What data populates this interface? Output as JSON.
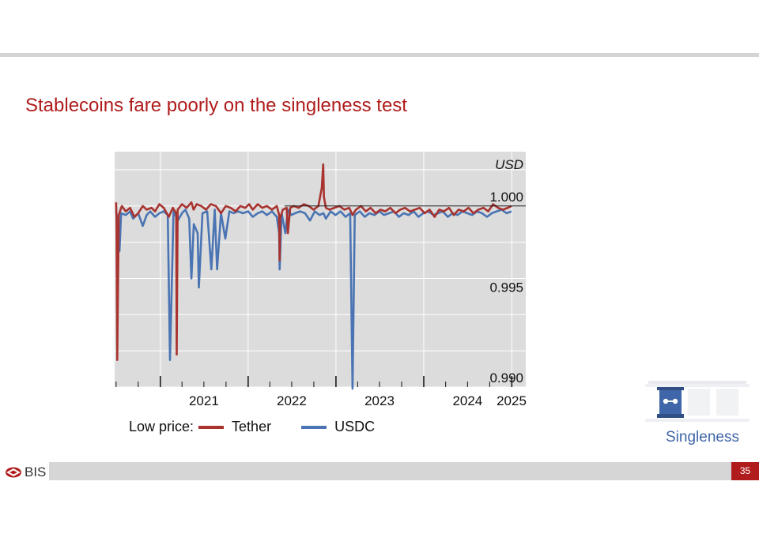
{
  "slide": {
    "title": "Stablecoins fare poorly on the singleness test",
    "page_number": "35",
    "logo_text": "BIS",
    "section_label": "Singleness"
  },
  "colors": {
    "title": "#b01c1c",
    "tether": "#a8332f",
    "usdc": "#4a74b3",
    "plot_background": "#dcdcdc",
    "section_label": "#3f66a8"
  },
  "icons": [
    "bis-logo-icon",
    "singleness-pillars-icon"
  ],
  "legend": {
    "prefix": "Low price:",
    "items": [
      "Tether",
      "USDC"
    ]
  },
  "chart_data": {
    "type": "line",
    "title": "",
    "xlabel": "",
    "ylabel": "",
    "unit_label": "USD",
    "y_axis_side": "right",
    "ylim": [
      0.99,
      1.003
    ],
    "y_ticks": [
      0.99,
      0.995,
      1.0
    ],
    "y_tick_labels": [
      "0.990",
      "0.995",
      "1.000"
    ],
    "reference_line": 1.0,
    "x_tick_labels": [
      "2021",
      "2022",
      "2023",
      "2024",
      "2025"
    ],
    "grid": true,
    "legend_placement": "bottom",
    "series": [
      {
        "name": "Tether",
        "x": [
          "2020-07-01",
          "2020-07-03",
          "2020-07-06",
          "2020-07-12",
          "2020-07-25",
          "2020-08-10",
          "2020-08-28",
          "2020-09-15",
          "2020-10-01",
          "2020-10-20",
          "2020-11-05",
          "2020-11-25",
          "2020-12-10",
          "2020-12-28",
          "2021-01-15",
          "2021-02-05",
          "2021-02-22",
          "2021-03-08",
          "2021-03-10",
          "2021-03-14",
          "2021-04-01",
          "2021-04-20",
          "2021-05-10",
          "2021-05-19",
          "2021-06-01",
          "2021-06-20",
          "2021-07-10",
          "2021-07-30",
          "2021-08-20",
          "2021-09-10",
          "2021-09-30",
          "2021-10-20",
          "2021-11-10",
          "2021-11-30",
          "2021-12-20",
          "2022-01-05",
          "2022-01-20",
          "2022-02-10",
          "2022-03-01",
          "2022-03-20",
          "2022-04-10",
          "2022-04-30",
          "2022-05-10",
          "2022-05-12",
          "2022-05-14",
          "2022-05-25",
          "2022-06-10",
          "2022-06-15",
          "2022-06-25",
          "2022-07-10",
          "2022-07-30",
          "2022-08-20",
          "2022-09-10",
          "2022-09-30",
          "2022-10-20",
          "2022-11-03",
          "2022-11-09",
          "2022-11-12",
          "2022-11-20",
          "2022-12-05",
          "2022-12-25",
          "2023-01-15",
          "2023-02-05",
          "2023-02-25",
          "2023-03-11",
          "2023-03-25",
          "2023-04-15",
          "2023-05-05",
          "2023-05-25",
          "2023-06-15",
          "2023-07-05",
          "2023-07-25",
          "2023-08-15",
          "2023-09-05",
          "2023-09-25",
          "2023-10-15",
          "2023-11-05",
          "2023-11-25",
          "2023-12-15",
          "2024-01-05",
          "2024-01-25",
          "2024-02-15",
          "2024-03-05",
          "2024-03-25",
          "2024-04-15",
          "2024-05-05",
          "2024-05-25",
          "2024-06-15",
          "2024-07-05",
          "2024-07-25",
          "2024-08-15",
          "2024-09-05",
          "2024-09-25",
          "2024-10-15",
          "2024-11-05",
          "2024-11-25",
          "2024-12-15",
          "2024-12-31"
        ],
        "values": [
          1.0002,
          0.9992,
          0.9915,
          0.9995,
          1.0,
          0.9997,
          0.9999,
          0.9994,
          0.9996,
          1.0,
          0.9998,
          0.9999,
          0.9997,
          1.0001,
          0.9999,
          0.9994,
          0.9999,
          0.9996,
          0.9918,
          0.9998,
          1.0001,
          0.9999,
          1.0002,
          0.9998,
          1.0001,
          1.0,
          0.9998,
          1.0001,
          1.0,
          0.9996,
          1.0,
          0.9999,
          0.9997,
          1.0,
          0.9999,
          1.0001,
          0.9998,
          1.0001,
          0.9999,
          1.0,
          0.9998,
          1.0,
          0.9995,
          0.997,
          0.9993,
          0.9998,
          0.9999,
          0.9985,
          0.9999,
          1.0,
          0.9999,
          1.0001,
          1.0,
          0.9998,
          1.0,
          1.001,
          1.0023,
          1.0005,
          0.9999,
          0.9998,
          0.9999,
          1.0,
          0.9998,
          0.9999,
          0.9995,
          0.9998,
          1.0,
          0.9997,
          0.9999,
          0.9996,
          0.9998,
          0.9997,
          0.9999,
          0.9996,
          0.9998,
          0.9999,
          0.9997,
          0.9998,
          0.9999,
          0.9996,
          0.9998,
          0.9994,
          0.9998,
          0.9997,
          0.9999,
          0.9995,
          0.9998,
          0.9997,
          0.9999,
          0.9996,
          0.9998,
          0.9999,
          0.9997,
          1.0001,
          0.9999,
          0.9998,
          0.9999,
          1.0
        ]
      },
      {
        "name": "USDC",
        "x": [
          "2020-07-01",
          "2020-07-10",
          "2020-07-15",
          "2020-07-22",
          "2020-08-10",
          "2020-08-28",
          "2020-09-10",
          "2020-10-01",
          "2020-10-20",
          "2020-11-05",
          "2020-11-20",
          "2020-12-10",
          "2020-12-28",
          "2021-01-15",
          "2021-02-01",
          "2021-02-10",
          "2021-02-25",
          "2021-03-15",
          "2021-04-01",
          "2021-04-15",
          "2021-05-01",
          "2021-05-10",
          "2021-05-20",
          "2021-06-05",
          "2021-06-10",
          "2021-06-25",
          "2021-07-15",
          "2021-08-01",
          "2021-08-15",
          "2021-08-25",
          "2021-09-10",
          "2021-09-28",
          "2021-10-15",
          "2021-11-01",
          "2021-11-20",
          "2021-12-10",
          "2022-01-01",
          "2022-01-20",
          "2022-02-10",
          "2022-03-01",
          "2022-03-20",
          "2022-04-10",
          "2022-04-30",
          "2022-05-10",
          "2022-05-12",
          "2022-05-20",
          "2022-06-05",
          "2022-06-15",
          "2022-06-30",
          "2022-07-15",
          "2022-08-05",
          "2022-08-25",
          "2022-09-15",
          "2022-10-05",
          "2022-10-25",
          "2022-11-10",
          "2022-11-20",
          "2022-12-10",
          "2022-12-30",
          "2023-01-20",
          "2023-02-10",
          "2023-03-01",
          "2023-03-11",
          "2023-03-20",
          "2023-04-10",
          "2023-05-01",
          "2023-05-20",
          "2023-06-10",
          "2023-07-01",
          "2023-07-20",
          "2023-08-10",
          "2023-08-30",
          "2023-09-20",
          "2023-10-10",
          "2023-10-30",
          "2023-11-20",
          "2023-12-10",
          "2023-12-30",
          "2024-01-20",
          "2024-02-10",
          "2024-03-01",
          "2024-03-20",
          "2024-04-10",
          "2024-04-30",
          "2024-05-20",
          "2024-06-10",
          "2024-06-30",
          "2024-07-20",
          "2024-08-10",
          "2024-08-30",
          "2024-09-20",
          "2024-10-10",
          "2024-10-30",
          "2024-11-20",
          "2024-12-10",
          "2024-12-31"
        ],
        "values": [
          0.9997,
          0.999,
          0.9975,
          0.9996,
          0.9995,
          0.9997,
          0.9993,
          0.9996,
          0.9989,
          0.9995,
          0.9997,
          0.9994,
          0.9996,
          0.9997,
          0.9995,
          0.9915,
          0.9997,
          0.9992,
          0.9996,
          0.9998,
          0.9993,
          0.996,
          0.999,
          0.9985,
          0.9955,
          0.9996,
          0.9997,
          0.9965,
          0.9998,
          0.9965,
          0.9996,
          0.9982,
          0.9997,
          0.9996,
          0.9997,
          0.9996,
          0.9997,
          0.9994,
          0.9996,
          0.9997,
          0.9995,
          0.9997,
          0.9994,
          0.9985,
          0.9965,
          0.9996,
          0.9985,
          0.9998,
          0.9995,
          0.9996,
          0.9997,
          0.9996,
          0.9992,
          0.9997,
          0.9995,
          0.9996,
          0.9993,
          0.9997,
          0.9995,
          0.9997,
          0.9994,
          0.9996,
          0.988,
          0.9995,
          0.9997,
          0.9994,
          0.9996,
          0.9995,
          0.9997,
          0.9995,
          0.9996,
          0.9997,
          0.9994,
          0.9996,
          0.9995,
          0.9997,
          0.9994,
          0.9996,
          0.9997,
          0.9995,
          0.9996,
          0.9997,
          0.9994,
          0.9996,
          0.9995,
          0.9997,
          0.9996,
          0.9995,
          0.9997,
          0.9996,
          0.9994,
          0.9996,
          0.9997,
          0.9998,
          0.9996,
          0.9997
        ]
      }
    ]
  }
}
